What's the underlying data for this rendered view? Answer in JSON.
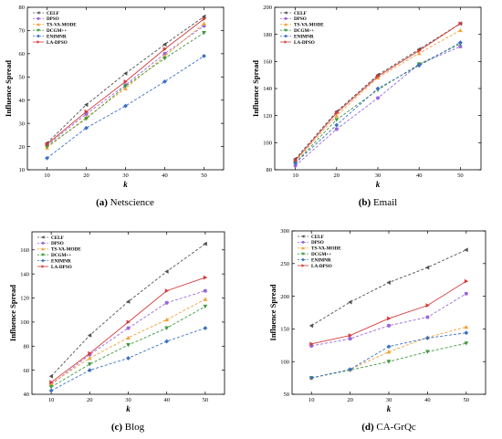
{
  "legend_labels": [
    "CELF",
    "DPSO",
    "TS-VA-MODE",
    "DCGM++",
    "ENIMNR",
    "LA-DPSO"
  ],
  "series_styles": [
    {
      "color": "#505050",
      "marker": "tri-left"
    },
    {
      "color": "#9966dd",
      "marker": "circle"
    },
    {
      "color": "#f2a13a",
      "marker": "tri-up"
    },
    {
      "color": "#3d9a3d",
      "marker": "tri-down"
    },
    {
      "color": "#3a6fc4",
      "marker": "diamond"
    },
    {
      "color": "#d43a3a",
      "marker": "tri-right"
    }
  ],
  "chart_data": [
    {
      "type": "line",
      "caption_label": "(a)",
      "caption_text": "Netscience",
      "xlabel": "k",
      "ylabel": "Influence Spread",
      "x": [
        10,
        20,
        30,
        40,
        50
      ],
      "xlim": [
        5,
        55
      ],
      "ylim": [
        10,
        80
      ],
      "yticks": [
        10,
        20,
        30,
        40,
        50,
        60,
        70,
        80
      ],
      "series": [
        {
          "name": "CELF",
          "values": [
            21.5,
            38,
            51.5,
            64,
            76
          ]
        },
        {
          "name": "DPSO",
          "values": [
            20.5,
            34,
            46.5,
            60,
            72
          ]
        },
        {
          "name": "TS-VA-MODE",
          "values": [
            19.5,
            32.5,
            45,
            59,
            73
          ]
        },
        {
          "name": "DCGM++",
          "values": [
            20,
            32,
            46,
            58,
            69
          ]
        },
        {
          "name": "ENIMNR",
          "values": [
            15,
            28,
            37.5,
            48,
            59
          ]
        },
        {
          "name": "LA-DPSO",
          "values": [
            21,
            35,
            48,
            62,
            75
          ]
        }
      ]
    },
    {
      "type": "line",
      "caption_label": "(b)",
      "caption_text": "Email",
      "xlabel": "k",
      "ylabel": "Influence Spread",
      "x": [
        10,
        20,
        30,
        40,
        50
      ],
      "xlim": [
        5,
        55
      ],
      "ylim": [
        80,
        200
      ],
      "yticks": [
        80,
        100,
        120,
        140,
        160,
        180,
        200
      ],
      "series": [
        {
          "name": "CELF",
          "values": [
            88,
            123,
            150,
            169,
            188
          ]
        },
        {
          "name": "DPSO",
          "values": [
            83,
            110,
            133,
            158,
            171
          ]
        },
        {
          "name": "TS-VA-MODE",
          "values": [
            86,
            120,
            148,
            166,
            183
          ]
        },
        {
          "name": "DCGM++",
          "values": [
            85,
            117,
            139,
            158,
            173
          ]
        },
        {
          "name": "ENIMNR",
          "values": [
            85,
            113,
            140,
            157,
            174
          ]
        },
        {
          "name": "LA-DPSO",
          "values": [
            87,
            122,
            149,
            168,
            188
          ]
        }
      ]
    },
    {
      "type": "line",
      "caption_label": "(c)",
      "caption_text": "Blog",
      "xlabel": "k",
      "ylabel": "Influence Spread",
      "x": [
        10,
        20,
        30,
        40,
        50
      ],
      "xlim": [
        5,
        55
      ],
      "ylim": [
        40,
        175
      ],
      "yticks": [
        40,
        60,
        80,
        100,
        120,
        140,
        160
      ],
      "series": [
        {
          "name": "CELF",
          "values": [
            55,
            89,
            117,
            142,
            165
          ]
        },
        {
          "name": "DPSO",
          "values": [
            48,
            73,
            95,
            116,
            126
          ]
        },
        {
          "name": "TS-VA-MODE",
          "values": [
            49,
            70,
            87,
            102,
            119
          ]
        },
        {
          "name": "DCGM++",
          "values": [
            46,
            65,
            81,
            95,
            113
          ]
        },
        {
          "name": "ENIMNR",
          "values": [
            43,
            60,
            70,
            84,
            95
          ]
        },
        {
          "name": "LA-DPSO",
          "values": [
            50,
            74,
            100,
            126,
            137
          ]
        }
      ]
    },
    {
      "type": "line",
      "caption_label": "(d)",
      "caption_text": "CA-GrQc",
      "xlabel": "k",
      "ylabel": "Influence Spread",
      "x": [
        10,
        20,
        30,
        40,
        50
      ],
      "xlim": [
        5,
        55
      ],
      "ylim": [
        50,
        300
      ],
      "yticks": [
        50,
        100,
        150,
        200,
        250,
        300
      ],
      "series": [
        {
          "name": "CELF",
          "values": [
            155,
            191,
            221,
            244,
            271
          ]
        },
        {
          "name": "DPSO",
          "values": [
            124,
            135,
            155,
            168,
            204
          ]
        },
        {
          "name": "TS-VA-MODE",
          "values": [
            75,
            88,
            115,
            137,
            153
          ]
        },
        {
          "name": "DCGM++",
          "values": [
            75,
            87,
            100,
            115,
            128
          ]
        },
        {
          "name": "ENIMNR",
          "values": [
            75,
            88,
            123,
            136,
            144
          ]
        },
        {
          "name": "LA-DPSO",
          "values": [
            127,
            140,
            166,
            186,
            223
          ]
        }
      ]
    }
  ]
}
